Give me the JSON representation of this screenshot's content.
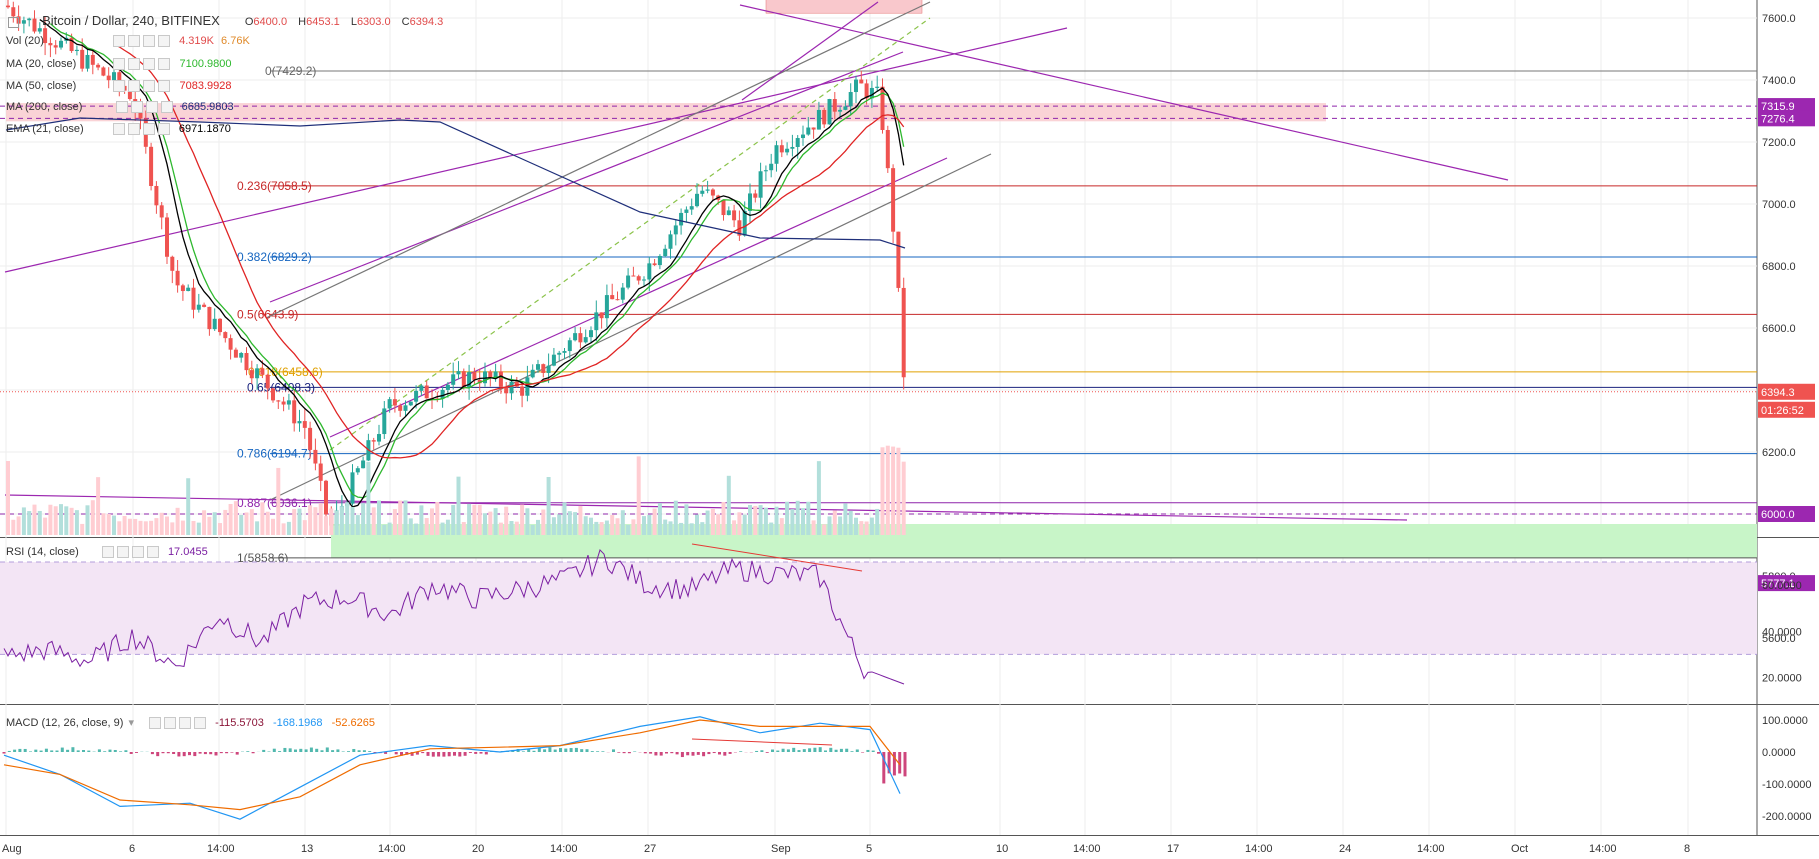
{
  "header": {
    "symbol": "Bitcoin / Dollar, 240, BITFINEX",
    "open_label": "O",
    "open": "6400.0",
    "high_label": "H",
    "high": "6453.1",
    "low_label": "L",
    "low": "6303.0",
    "close_label": "C",
    "close": "6394.3"
  },
  "indicators": [
    {
      "label": "Vol (20)",
      "values": [
        "4.319K",
        "6.76K"
      ],
      "colors": [
        "#e04a4a",
        "#e08a2a"
      ]
    },
    {
      "label": "MA (20, close)",
      "values": [
        "7100.9800"
      ],
      "colors": [
        "#2eb82e"
      ]
    },
    {
      "label": "MA (50, close)",
      "values": [
        "7083.9928"
      ],
      "colors": [
        "#e02424"
      ]
    },
    {
      "label": "MA (200, close)",
      "values": [
        "6685.9803"
      ],
      "colors": [
        "#1f2f7a"
      ]
    },
    {
      "label": "EMA (21, close)",
      "values": [
        "6971.1870"
      ],
      "colors": [
        "#000000"
      ]
    }
  ],
  "rsi": {
    "label": "RSI (14, close)",
    "value": "17.0455",
    "color": "#7b1fa2"
  },
  "macd": {
    "label": "MACD (12, 26, close, 9)",
    "values": [
      "-115.5703",
      "-168.1968",
      "-52.6265"
    ],
    "colors": [
      "#8b1538",
      "#2196f3",
      "#ef6c00"
    ]
  },
  "colors": {
    "up": "#26a69a",
    "down": "#ef5350",
    "grid": "#eeeeee",
    "fib_red": "#c62828",
    "purple": "#9c27b0",
    "green_zone": "#c8f5c8",
    "red_zone": "#f9c8cc"
  },
  "price_axis_labels": [
    "7600.0",
    "7400.0",
    "7200.0",
    "7000.0",
    "6800.0",
    "6600.0",
    "6400.0",
    "6200.0",
    "6000.0",
    "5800.0",
    "5600.0"
  ],
  "rsi_axis_labels": [
    "60.0000",
    "40.0000",
    "20.0000"
  ],
  "macd_axis_labels": [
    "100.0000",
    "0.0000",
    "-100.0000",
    "-200.0000"
  ],
  "time_axis_labels": [
    "Aug",
    "6",
    "14:00",
    "13",
    "14:00",
    "20",
    "14:00",
    "27",
    "Sep",
    "5",
    "10",
    "14:00",
    "17",
    "14:00",
    "24",
    "14:00",
    "Oct",
    "14:00",
    "8"
  ],
  "price_badges": [
    {
      "text": "7315.9",
      "color": "#9c27b0"
    },
    {
      "text": "7276.4",
      "color": "#9c27b0"
    },
    {
      "text": "6394.3",
      "color": "#ef5350"
    },
    {
      "text": "01:26:52",
      "color": "#ef5350"
    },
    {
      "text": "6000.0",
      "color": "#9c27b0"
    },
    {
      "text": "5777.1",
      "color": "#9c27b0"
    }
  ],
  "fib_labels": [
    {
      "text": "0(7429.2)",
      "color": "#666666"
    },
    {
      "text": "0.236(7058.5)",
      "color": "#c62828"
    },
    {
      "text": "0.382(6829.2)",
      "color": "#1565c0"
    },
    {
      "text": "0.5(6643.9)",
      "color": "#c62828"
    },
    {
      "text": "0.618(6458.6)",
      "color": "#e0a000"
    },
    {
      "text": "0.65(6408.3)",
      "color": "#1a237e"
    },
    {
      "text": "0.786(6194.7)",
      "color": "#1565c0"
    },
    {
      "text": "0.887(6036.1)",
      "color": "#8e24aa"
    },
    {
      "text": "1(5858.6)",
      "color": "#555555"
    }
  ],
  "chart_data": {
    "type": "candlestick",
    "title": "Bitcoin / Dollar, 240, BITFINEX",
    "ohlc_last": {
      "open": 6400.0,
      "high": 6453.1,
      "low": 6303.0,
      "close": 6394.3
    },
    "ylim": [
      5540,
      7680
    ],
    "panes": [
      "price",
      "rsi",
      "macd"
    ],
    "fib_levels": [
      {
        "ratio": 0,
        "price": 7429.2
      },
      {
        "ratio": 0.236,
        "price": 7058.5
      },
      {
        "ratio": 0.382,
        "price": 6829.2
      },
      {
        "ratio": 0.5,
        "price": 6643.9
      },
      {
        "ratio": 0.618,
        "price": 6458.6
      },
      {
        "ratio": 0.65,
        "price": 6408.3
      },
      {
        "ratio": 0.786,
        "price": 6194.7
      },
      {
        "ratio": 0.887,
        "price": 6036.1
      },
      {
        "ratio": 1,
        "price": 5858.6
      }
    ],
    "horizontal_levels": [
      7315.9,
      7276.4,
      6000.0,
      5777.1
    ],
    "zones": [
      {
        "kind": "resistance",
        "from": 7276.4,
        "to": 7315.9
      },
      {
        "kind": "support",
        "from": 5858.6,
        "to": 6000.0
      }
    ],
    "close_path_keypoints": [
      {
        "x": "Aug",
        "y": 7640
      },
      {
        "x": "6",
        "y": 7350
      },
      {
        "x": "Aug 9",
        "y": 6750
      },
      {
        "x": "13",
        "y": 6280
      },
      {
        "x": "Aug 14",
        "y": 5950
      },
      {
        "x": "Aug 16",
        "y": 6350
      },
      {
        "x": "20",
        "y": 6450
      },
      {
        "x": "Aug 22",
        "y": 6400
      },
      {
        "x": "27",
        "y": 6800
      },
      {
        "x": "Aug 29",
        "y": 7050
      },
      {
        "x": "Aug 31",
        "y": 6930
      },
      {
        "x": "Sep",
        "y": 7180
      },
      {
        "x": "Sep 3",
        "y": 7280
      },
      {
        "x": "Sep 4",
        "y": 7380
      },
      {
        "x": "5",
        "y": 7340
      },
      {
        "x": "Sep 5 14:00",
        "y": 6900
      },
      {
        "x": "Sep 6",
        "y": 6394.3
      }
    ],
    "rsi_series_keypoints": [
      29,
      32,
      27,
      38,
      25,
      47,
      35,
      52,
      55,
      47,
      60,
      54,
      58,
      62,
      72,
      60,
      58,
      67,
      65,
      64,
      24,
      17
    ],
    "rsi_bands": [
      30,
      70
    ],
    "macd_ylim": [
      -230,
      120
    ]
  }
}
